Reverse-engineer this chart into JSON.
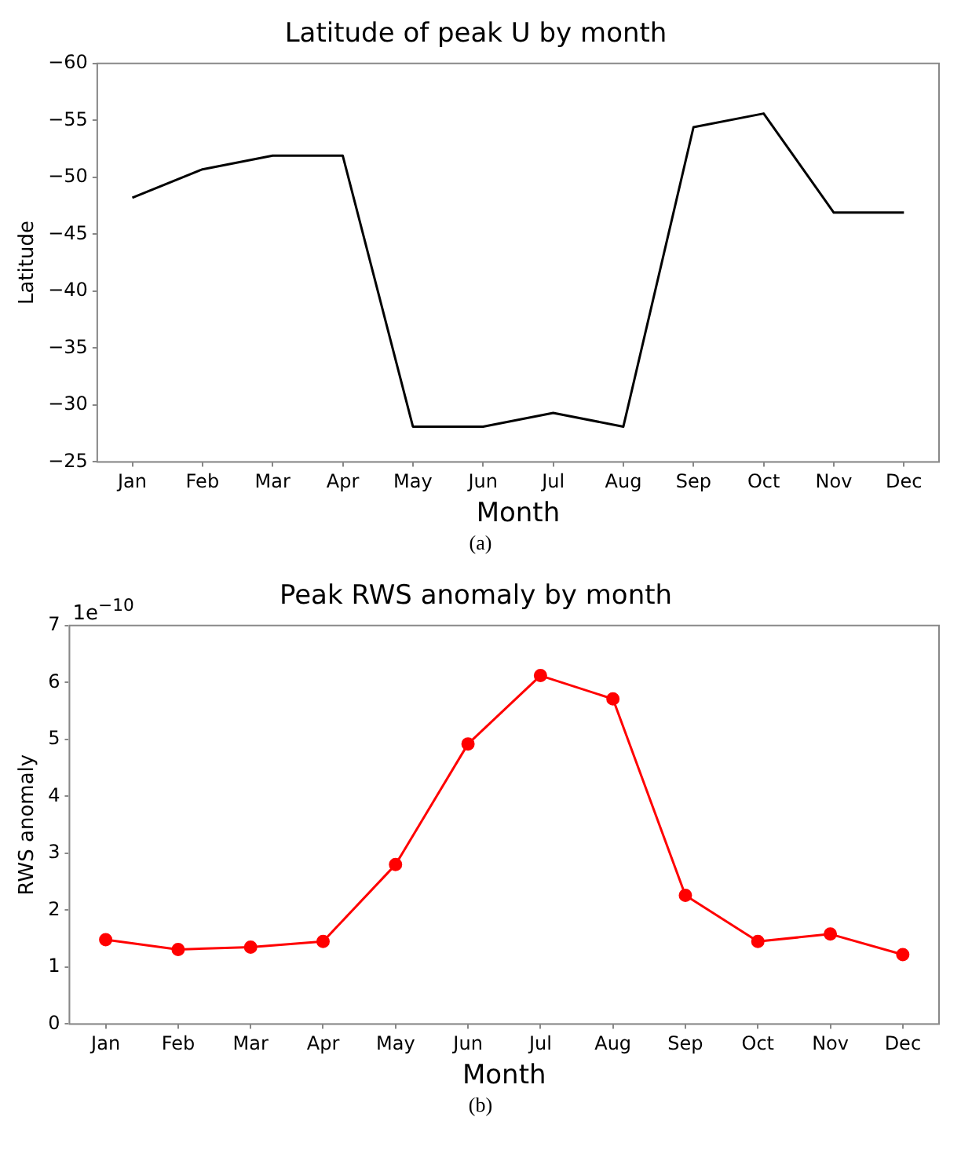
{
  "chart_data": [
    {
      "type": "line",
      "title": "Latitude of peak U by month",
      "xlabel": "Month",
      "ylabel": "Latitude",
      "categories": [
        "Jan",
        "Feb",
        "Mar",
        "Apr",
        "May",
        "Jun",
        "Jul",
        "Aug",
        "Sep",
        "Oct",
        "Nov",
        "Dec"
      ],
      "series": [
        {
          "color": "#000000",
          "values": [
            -48.2,
            -50.7,
            -51.9,
            -51.9,
            -28.1,
            -28.1,
            -29.3,
            -28.1,
            -54.4,
            -55.6,
            -46.9,
            -46.9
          ]
        }
      ],
      "ylim": [
        -25,
        -60
      ],
      "yticks": [
        {
          "value": -60,
          "label": "−60"
        },
        {
          "value": -55,
          "label": "−55"
        },
        {
          "value": -50,
          "label": "−50"
        },
        {
          "value": -45,
          "label": "−45"
        },
        {
          "value": -40,
          "label": "−40"
        },
        {
          "value": -35,
          "label": "−35"
        },
        {
          "value": -30,
          "label": "−30"
        },
        {
          "value": -25,
          "label": "−25"
        }
      ],
      "grid": false,
      "marker": "none",
      "annotations": [
        "(a)"
      ]
    },
    {
      "type": "line",
      "title": "Peak RWS anomaly by month",
      "xlabel": "Month",
      "ylabel": "RWS anomaly",
      "categories": [
        "Jan",
        "Feb",
        "Mar",
        "Apr",
        "May",
        "Jun",
        "Jul",
        "Aug",
        "Sep",
        "Oct",
        "Nov",
        "Dec"
      ],
      "series": [
        {
          "color": "#ff0000",
          "values": [
            1.48,
            1.31,
            1.35,
            1.45,
            2.8,
            4.92,
            6.12,
            5.71,
            2.26,
            1.45,
            1.58,
            1.22
          ]
        }
      ],
      "ylim": [
        0,
        7
      ],
      "yticks": [
        0,
        1,
        2,
        3,
        4,
        5,
        6,
        7
      ],
      "grid": false,
      "marker": "circle",
      "annotations": [
        "1e$^{−10}$",
        "(b)"
      ]
    }
  ]
}
